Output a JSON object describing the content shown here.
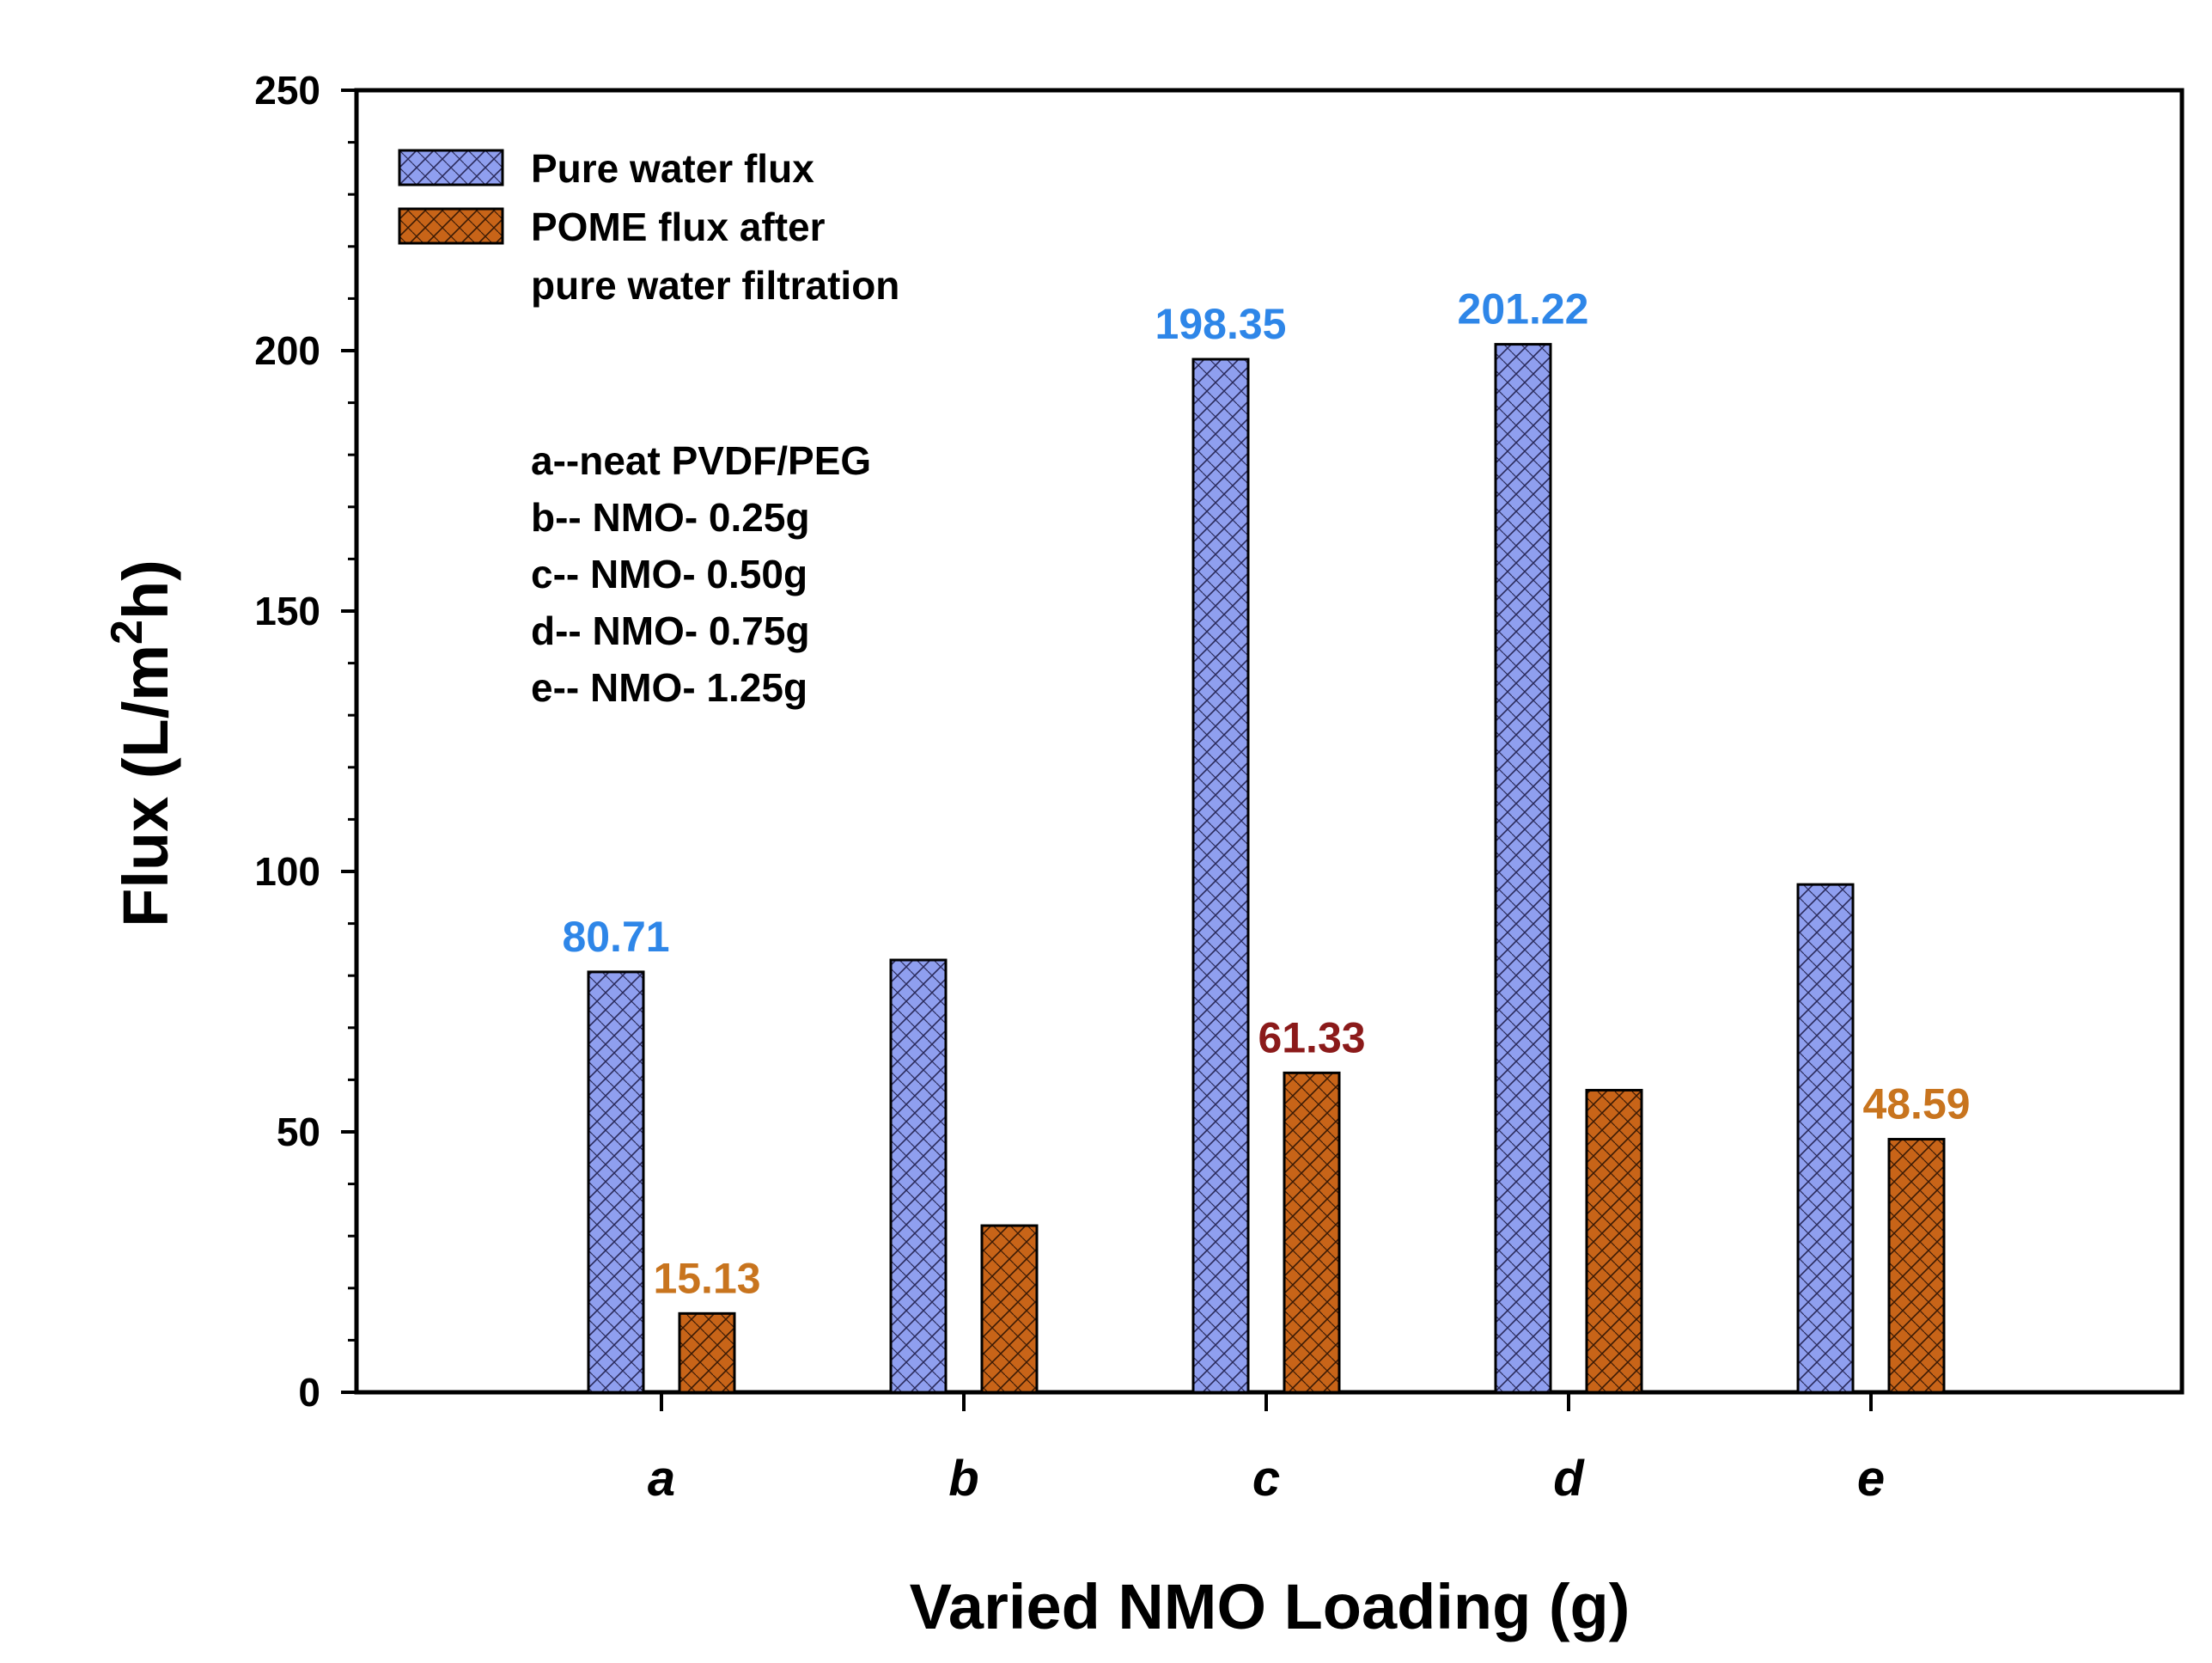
{
  "chart_data": {
    "type": "bar",
    "categories": [
      "a",
      "b",
      "c",
      "d",
      "e"
    ],
    "series": [
      {
        "name": "Pure water flux",
        "color": "#8F9FEF",
        "values": [
          80.71,
          83.0,
          198.35,
          201.22,
          97.5
        ]
      },
      {
        "name": "POME flux after pure water filtration",
        "color": "#C86418",
        "values": [
          15.13,
          32.0,
          61.33,
          58.0,
          48.59
        ]
      }
    ],
    "ylabel_main": "Flux (L/m",
    "ylabel_sup": "2",
    "ylabel_end": "h)",
    "xlabel": "Varied NMO Loading (g)",
    "ylim": [
      0,
      250
    ],
    "yticks": [
      "0",
      "50",
      "100",
      "150",
      "200",
      "250"
    ],
    "legend": {
      "placement": "top-left",
      "entries": [
        {
          "lines": [
            "Pure water flux"
          ]
        },
        {
          "lines": [
            "POME flux after",
            "pure water filtration"
          ]
        }
      ]
    },
    "notes": [
      "a--neat PVDF/PEG",
      "b-- NMO- 0.25g",
      "c-- NMO- 0.50g",
      "d-- NMO- 0.75g",
      "e-- NMO- 1.25g"
    ],
    "annotations": [
      {
        "category": "a",
        "series": 0,
        "text": "80.71",
        "color": "#2E86E8"
      },
      {
        "category": "a",
        "series": 1,
        "text": "15.13",
        "color": "#C8741E"
      },
      {
        "category": "c",
        "series": 0,
        "text": "198.35",
        "color": "#2E86E8"
      },
      {
        "category": "c",
        "series": 1,
        "text": "61.33",
        "color": "#8B1A1A"
      },
      {
        "category": "d",
        "series": 0,
        "text": "201.22",
        "color": "#2E86E8"
      },
      {
        "category": "e",
        "series": 1,
        "text": "48.59",
        "color": "#C8741E"
      }
    ],
    "grid": false
  }
}
